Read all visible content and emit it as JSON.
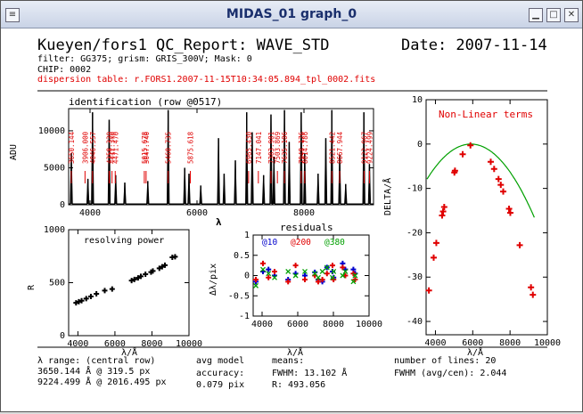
{
  "window": {
    "title": "MIDAS_01 graph_0"
  },
  "header": {
    "report_title": "Kueyen/fors1 QC_Report: WAVE_STD",
    "date": "Date: 2007-11-14",
    "filter_line": "filter: GG375; grism: GRIS_300V; Mask: 0",
    "chip": "CHIP: 0002",
    "dispersion_table": "dispersion table: r.FORS1.2007-11-15T10:34:05.894_tpl_0002.fits"
  },
  "colors": {
    "red": "#e00000",
    "green": "#00a000",
    "blue": "#0000cc",
    "black": "#000000"
  },
  "footer": {
    "lambda_range_label": "λ range: (central row)",
    "range_line1": "3650.144 Å @ 319.5 px",
    "range_line2": "9224.499 Å @ 2016.495 px",
    "avg_model_label": "avg model",
    "accuracy_label": "accuracy:",
    "accuracy_value": "0.079 pix",
    "means_label": "means:",
    "fwhm": "FWHM: 13.102 Å",
    "r_value": "R: 493.056",
    "number_of_lines": "number of lines: 20",
    "fwhm_ratio": "FWHM (avg/cen): 2.044"
  },
  "chart_data": [
    {
      "type": "line",
      "title": "identification (row @0517)",
      "xlabel": "λ",
      "ylabel": "ADU",
      "xlim": [
        3600,
        9300
      ],
      "ylim": [
        0,
        13000
      ],
      "xticks": [
        4000,
        6000,
        8000
      ],
      "yticks": [
        0,
        5000,
        10000
      ],
      "spectrum_peaks": [
        {
          "x": 3650,
          "y": 7000
        },
        {
          "x": 3960,
          "y": 3500
        },
        {
          "x": 4047,
          "y": 12500
        },
        {
          "x": 4358,
          "y": 11500
        },
        {
          "x": 4480,
          "y": 4000
        },
        {
          "x": 4650,
          "y": 3000
        },
        {
          "x": 5080,
          "y": 3200
        },
        {
          "x": 5461,
          "y": 12800
        },
        {
          "x": 5770,
          "y": 5000
        },
        {
          "x": 5850,
          "y": 4200
        },
        {
          "x": 6070,
          "y": 2600
        },
        {
          "x": 6402,
          "y": 9000
        },
        {
          "x": 6507,
          "y": 4200
        },
        {
          "x": 6717,
          "y": 6000
        },
        {
          "x": 6929,
          "y": 12500
        },
        {
          "x": 7032,
          "y": 9800
        },
        {
          "x": 7245,
          "y": 4000
        },
        {
          "x": 7383,
          "y": 12200
        },
        {
          "x": 7438,
          "y": 6500
        },
        {
          "x": 7635,
          "y": 12800
        },
        {
          "x": 7724,
          "y": 8500
        },
        {
          "x": 7948,
          "y": 12500
        },
        {
          "x": 8014,
          "y": 7000
        },
        {
          "x": 8264,
          "y": 4200
        },
        {
          "x": 8408,
          "y": 9000
        },
        {
          "x": 8521,
          "y": 12800
        },
        {
          "x": 8668,
          "y": 6800
        },
        {
          "x": 8780,
          "y": 2800
        },
        {
          "x": 9120,
          "y": 12500
        },
        {
          "x": 9224,
          "y": 5500
        }
      ],
      "line_labels": [
        {
          "x": 3650,
          "label": "3650.144"
        },
        {
          "x": 3906,
          "label": "3906.000"
        },
        {
          "x": 4046,
          "label": "4046.557"
        },
        {
          "x": 4358,
          "label": "4358.329"
        },
        {
          "x": 4411,
          "label": "4411.370"
        },
        {
          "x": 4471,
          "label": "4471.470"
        },
        {
          "x": 5015,
          "label": "5015.678"
        },
        {
          "x": 5048,
          "label": "5047.740"
        },
        {
          "x": 5461,
          "label": "5460.735"
        },
        {
          "x": 5875,
          "label": "5875.618"
        },
        {
          "x": 6965,
          "label": "6965.430"
        },
        {
          "x": 7147,
          "label": "7147.041"
        },
        {
          "x": 7383,
          "label": "7383.981"
        },
        {
          "x": 7503,
          "label": "7503.869"
        },
        {
          "x": 7635,
          "label": "7635.106"
        },
        {
          "x": 7948,
          "label": "7948.176"
        },
        {
          "x": 8014,
          "label": "8014.786"
        },
        {
          "x": 8521,
          "label": "8521.442"
        },
        {
          "x": 8667,
          "label": "8667.944"
        },
        {
          "x": 9123,
          "label": "9122.967"
        },
        {
          "x": 9224,
          "label": "9224.499"
        }
      ]
    },
    {
      "type": "scatter",
      "title": "resolving power",
      "xlabel": "λ/Å",
      "ylabel": "R",
      "xlim": [
        3500,
        10000
      ],
      "ylim": [
        0,
        1000
      ],
      "xticks": [
        4000,
        6000,
        8000,
        10000
      ],
      "yticks": [
        0,
        500,
        1000
      ],
      "points": [
        {
          "x": 3900,
          "y": 310
        },
        {
          "x": 4050,
          "y": 320
        },
        {
          "x": 4200,
          "y": 330
        },
        {
          "x": 4450,
          "y": 350
        },
        {
          "x": 4700,
          "y": 370
        },
        {
          "x": 5000,
          "y": 395
        },
        {
          "x": 5450,
          "y": 425
        },
        {
          "x": 5850,
          "y": 440
        },
        {
          "x": 6900,
          "y": 520
        },
        {
          "x": 7050,
          "y": 530
        },
        {
          "x": 7250,
          "y": 545
        },
        {
          "x": 7400,
          "y": 560
        },
        {
          "x": 7650,
          "y": 580
        },
        {
          "x": 7950,
          "y": 600
        },
        {
          "x": 8050,
          "y": 610
        },
        {
          "x": 8400,
          "y": 635
        },
        {
          "x": 8550,
          "y": 650
        },
        {
          "x": 8700,
          "y": 665
        },
        {
          "x": 9100,
          "y": 740
        },
        {
          "x": 9250,
          "y": 745
        }
      ]
    },
    {
      "type": "scatter",
      "title": "residuals",
      "xlabel": "λ/Å",
      "ylabel": "Δλ/pix",
      "xlim": [
        3500,
        10000
      ],
      "ylim": [
        -1,
        1
      ],
      "xticks": [
        4000,
        6000,
        8000,
        10000
      ],
      "yticks": [
        -1,
        -0.5,
        0,
        0.5,
        1
      ],
      "series": [
        {
          "name": "@10",
          "color": "blue",
          "points": [
            {
              "x": 3650,
              "y": -0.15
            },
            {
              "x": 4050,
              "y": 0.1
            },
            {
              "x": 4360,
              "y": 0.15
            },
            {
              "x": 4700,
              "y": 0.0
            },
            {
              "x": 5460,
              "y": -0.1
            },
            {
              "x": 5880,
              "y": 0.05
            },
            {
              "x": 6400,
              "y": 0.0
            },
            {
              "x": 6960,
              "y": 0.08
            },
            {
              "x": 7150,
              "y": -0.1
            },
            {
              "x": 7380,
              "y": -0.15
            },
            {
              "x": 7640,
              "y": 0.2
            },
            {
              "x": 7950,
              "y": 0.1
            },
            {
              "x": 8010,
              "y": -0.05
            },
            {
              "x": 8520,
              "y": 0.3
            },
            {
              "x": 8670,
              "y": 0.15
            },
            {
              "x": 9120,
              "y": 0.15
            },
            {
              "x": 9220,
              "y": 0.05
            }
          ]
        },
        {
          "name": "@200",
          "color": "red",
          "points": [
            {
              "x": 3650,
              "y": -0.1
            },
            {
              "x": 4050,
              "y": 0.3
            },
            {
              "x": 4360,
              "y": -0.05
            },
            {
              "x": 4700,
              "y": 0.1
            },
            {
              "x": 5460,
              "y": -0.15
            },
            {
              "x": 5880,
              "y": 0.25
            },
            {
              "x": 6400,
              "y": -0.1
            },
            {
              "x": 6960,
              "y": 0.0
            },
            {
              "x": 7150,
              "y": -0.15
            },
            {
              "x": 7380,
              "y": -0.1
            },
            {
              "x": 7640,
              "y": 0.05
            },
            {
              "x": 7950,
              "y": 0.25
            },
            {
              "x": 8010,
              "y": -0.1
            },
            {
              "x": 8520,
              "y": 0.2
            },
            {
              "x": 8670,
              "y": 0.0
            },
            {
              "x": 9120,
              "y": 0.05
            },
            {
              "x": 9220,
              "y": -0.1
            }
          ]
        },
        {
          "name": "@380",
          "color": "green",
          "points": [
            {
              "x": 3650,
              "y": -0.25
            },
            {
              "x": 4050,
              "y": 0.15
            },
            {
              "x": 4360,
              "y": 0.05
            },
            {
              "x": 4700,
              "y": -0.05
            },
            {
              "x": 5460,
              "y": 0.1
            },
            {
              "x": 5880,
              "y": 0.0
            },
            {
              "x": 6400,
              "y": 0.1
            },
            {
              "x": 6960,
              "y": 0.05
            },
            {
              "x": 7150,
              "y": -0.05
            },
            {
              "x": 7380,
              "y": 0.1
            },
            {
              "x": 7640,
              "y": 0.2
            },
            {
              "x": 7950,
              "y": -0.05
            },
            {
              "x": 8010,
              "y": 0.1
            },
            {
              "x": 8520,
              "y": 0.0
            },
            {
              "x": 8670,
              "y": 0.1
            },
            {
              "x": 9120,
              "y": -0.15
            },
            {
              "x": 9220,
              "y": 0.0
            }
          ]
        }
      ]
    },
    {
      "type": "scatter",
      "title": "Non-Linear terms",
      "xlabel": "λ/Å",
      "ylabel": "DELTA/Å",
      "xlim": [
        3500,
        10000
      ],
      "ylim": [
        -43,
        10
      ],
      "xticks": [
        4000,
        6000,
        8000,
        10000
      ],
      "yticks": [
        -40,
        -30,
        -20,
        -10,
        0,
        10
      ],
      "points": [
        {
          "x": 3650,
          "y": -33.0
        },
        {
          "x": 3906,
          "y": -25.6
        },
        {
          "x": 4047,
          "y": -22.3
        },
        {
          "x": 4358,
          "y": -16.1
        },
        {
          "x": 4411,
          "y": -15.2
        },
        {
          "x": 4471,
          "y": -14.2
        },
        {
          "x": 5016,
          "y": -6.4
        },
        {
          "x": 5048,
          "y": -6.0
        },
        {
          "x": 5461,
          "y": -2.3
        },
        {
          "x": 5876,
          "y": -0.3
        },
        {
          "x": 6965,
          "y": -4.0
        },
        {
          "x": 7147,
          "y": -5.6
        },
        {
          "x": 7384,
          "y": -7.9
        },
        {
          "x": 7504,
          "y": -9.2
        },
        {
          "x": 7635,
          "y": -10.7
        },
        {
          "x": 7948,
          "y": -14.6
        },
        {
          "x": 8015,
          "y": -15.5
        },
        {
          "x": 8521,
          "y": -22.8
        },
        {
          "x": 9123,
          "y": -32.3
        },
        {
          "x": 9224,
          "y": -34.0
        }
      ],
      "fit": {
        "vertex_x": 5900,
        "vertex_y": 0.0,
        "a": 1.43e-06
      }
    }
  ]
}
